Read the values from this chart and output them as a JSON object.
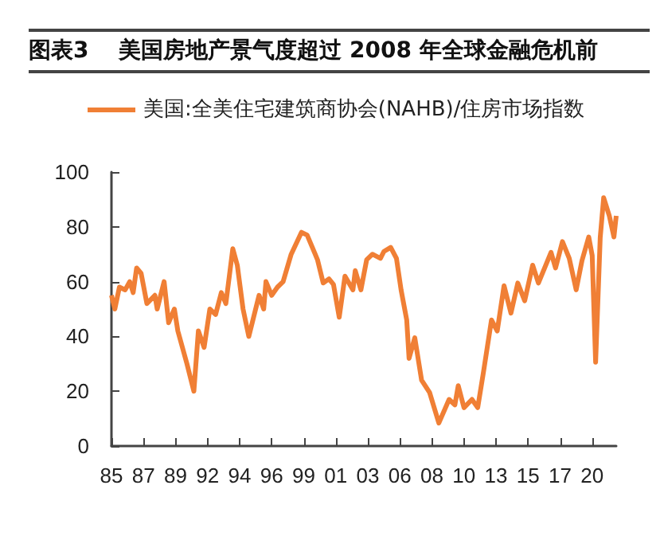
{
  "chart_data": {
    "type": "line",
    "title": "图表3　 美国房地产景气度超过 2008 年全球金融危机前",
    "x": [
      "1985-01",
      "1985-04",
      "1985-08",
      "1986-01",
      "1986-05",
      "1986-08",
      "1986-11",
      "1987-03",
      "1987-08",
      "1988-03",
      "1988-05",
      "1988-11",
      "1989-03",
      "1989-08",
      "1989-11",
      "1990-07",
      "1991-01",
      "1991-05",
      "1991-10",
      "1992-03",
      "1992-08",
      "1993-01",
      "1993-05",
      "1993-11",
      "1994-03",
      "1994-08",
      "1995-01",
      "1995-10",
      "1996-02",
      "1996-04",
      "1996-09",
      "1997-02",
      "1997-07",
      "1998-02",
      "1998-11",
      "1999-04",
      "1999-11",
      "2000-01",
      "2000-06",
      "2000-11",
      "2001-03",
      "2001-08",
      "2002-01",
      "2002-08",
      "2002-10",
      "2003-03",
      "2003-08",
      "2004-01",
      "2004-08",
      "2004-11",
      "2005-05",
      "2005-10",
      "2006-02",
      "2006-07",
      "2006-09",
      "2007-02",
      "2007-08",
      "2008-03",
      "2008-11",
      "2009-08",
      "2010-01",
      "2010-04",
      "2010-09",
      "2011-04",
      "2011-09",
      "2012-02",
      "2012-09",
      "2013-02",
      "2013-08",
      "2014-02",
      "2014-08",
      "2015-02",
      "2015-09",
      "2016-02",
      "2017-01",
      "2017-05",
      "2017-11",
      "2018-05",
      "2018-11",
      "2019-04",
      "2019-10",
      "2020-01",
      "2020-04",
      "2020-08",
      "2020-11",
      "2021-04",
      "2021-08",
      "2021-10"
    ],
    "series": [
      {
        "name": "美国:全美住宅建筑商协会(NAHB)/住房市场指数",
        "color": "#f07f35",
        "values": [
          55,
          50,
          58,
          57,
          60,
          56,
          65,
          63,
          52,
          55,
          50,
          60,
          45,
          50,
          42,
          30,
          20,
          42,
          36,
          50,
          48,
          56,
          52,
          72,
          66,
          50,
          40,
          55,
          50,
          60,
          55,
          58,
          60,
          70,
          78,
          77,
          70,
          68,
          59.5,
          61,
          59,
          47,
          62,
          57,
          64,
          57,
          68,
          70,
          68.5,
          71,
          72.5,
          68.5,
          57,
          46,
          32,
          39.5,
          24,
          19.5,
          8.4,
          17,
          15,
          22,
          14,
          17,
          14,
          27,
          46,
          42,
          58.5,
          48.5,
          59.5,
          53,
          66,
          59.5,
          70.7,
          65,
          74.6,
          68.5,
          57,
          67.5,
          76.3,
          69.5,
          30.6,
          76,
          90.6,
          84,
          76.3,
          84
        ]
      }
    ],
    "xlim": [
      "1985-01",
      "2021-10"
    ],
    "xticks": [
      {
        "value": "1985-01",
        "label": "85"
      },
      {
        "value": "1987-05",
        "label": "87"
      },
      {
        "value": "1989-09",
        "label": "89"
      },
      {
        "value": "1992-01",
        "label": "92"
      },
      {
        "value": "1994-05",
        "label": "94"
      },
      {
        "value": "1996-09",
        "label": "96"
      },
      {
        "value": "1999-01",
        "label": "99"
      },
      {
        "value": "2001-05",
        "label": "01"
      },
      {
        "value": "2003-09",
        "label": "03"
      },
      {
        "value": "2006-01",
        "label": "06"
      },
      {
        "value": "2008-05",
        "label": "08"
      },
      {
        "value": "2010-09",
        "label": "10"
      },
      {
        "value": "2013-01",
        "label": "13"
      },
      {
        "value": "2015-05",
        "label": "15"
      },
      {
        "value": "2017-09",
        "label": "17"
      },
      {
        "value": "2020-01",
        "label": "20"
      }
    ],
    "ylim": [
      0,
      100
    ],
    "yticks": [
      0,
      20,
      40,
      60,
      80,
      100
    ],
    "grid": false,
    "legend": "top left",
    "marker": "none",
    "line_style": "solid"
  }
}
